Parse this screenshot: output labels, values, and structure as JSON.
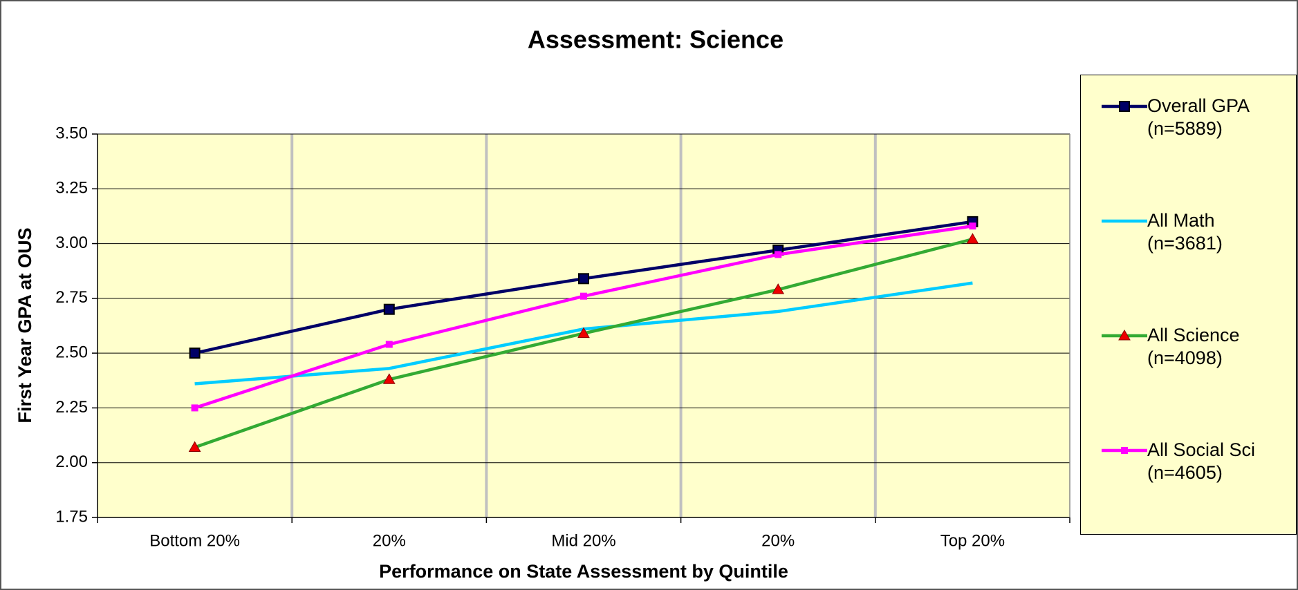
{
  "chart_data": {
    "type": "line",
    "title": "Assessment: Science",
    "xlabel": "Performance on State Assessment by Quintile",
    "ylabel": "First Year GPA at OUS",
    "categories": [
      "Bottom 20%",
      "20%",
      "Mid 20%",
      "20%",
      "Top 20%"
    ],
    "series": [
      {
        "name": "Overall GPA (n=5889)",
        "color": "#000066",
        "marker": "square",
        "values": [
          2.5,
          2.7,
          2.84,
          2.97,
          3.1
        ]
      },
      {
        "name": "All Math (n=3681)",
        "color": "#00ccff",
        "marker": "none",
        "values": [
          2.36,
          2.43,
          2.61,
          2.69,
          2.82
        ]
      },
      {
        "name": "All Science (n=4098)",
        "color": "#33aa33",
        "marker": "triangle",
        "values": [
          2.07,
          2.38,
          2.59,
          2.79,
          3.02
        ]
      },
      {
        "name": "All Social Sci (n=4605)",
        "color": "#ff00ff",
        "marker": "small-square",
        "values": [
          2.25,
          2.54,
          2.76,
          2.95,
          3.08
        ]
      }
    ],
    "ylim": [
      1.75,
      3.5
    ],
    "yticks": [
      1.75,
      {
        "value": 2,
        "label": "2.00"
      },
      2.25,
      {
        "value": 2.5,
        "label": "2.50"
      },
      2.75,
      {
        "value": 3,
        "label": "3.00"
      },
      3.25,
      {
        "value": 3.5,
        "label": "3.50"
      }
    ],
    "grid": true,
    "legend": "right"
  }
}
